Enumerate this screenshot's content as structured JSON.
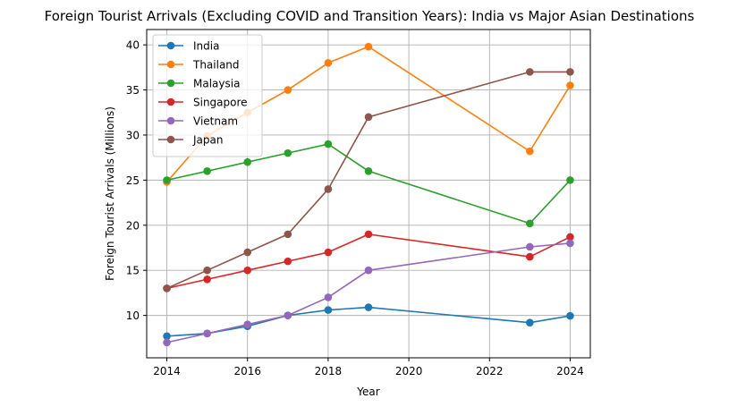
{
  "chart_data": {
    "type": "line",
    "title": "Foreign Tourist Arrivals (Excluding COVID and Transition Years): India vs Major Asian Destinations",
    "xlabel": "Year",
    "ylabel": "Foreign Tourist Arrivals (Millions)",
    "xlim": [
      2013.5,
      2024.5
    ],
    "ylim": [
      5.3,
      41.7
    ],
    "xticks": [
      2014,
      2016,
      2018,
      2020,
      2022,
      2024
    ],
    "yticks": [
      10,
      15,
      20,
      25,
      30,
      35,
      40
    ],
    "grid": true,
    "legend_position": "upper-left",
    "x": [
      2014,
      2015,
      2016,
      2017,
      2018,
      2019,
      2023,
      2024
    ],
    "series": [
      {
        "name": "India",
        "color": "#1f77b4",
        "values": [
          7.7,
          8.0,
          8.8,
          10.0,
          10.6,
          10.9,
          9.2,
          9.95
        ]
      },
      {
        "name": "Thailand",
        "color": "#ff7f0e",
        "values": [
          24.8,
          29.9,
          32.5,
          35.0,
          38.0,
          39.8,
          28.2,
          35.5
        ]
      },
      {
        "name": "Malaysia",
        "color": "#2ca02c",
        "values": [
          25.0,
          26.0,
          27.0,
          28.0,
          29.0,
          26.0,
          20.2,
          25.0
        ]
      },
      {
        "name": "Singapore",
        "color": "#d62728",
        "values": [
          13.0,
          14.0,
          15.0,
          16.0,
          17.0,
          19.0,
          16.5,
          18.7
        ]
      },
      {
        "name": "Vietnam",
        "color": "#9467bd",
        "values": [
          7.0,
          8.0,
          9.0,
          10.0,
          12.0,
          15.0,
          17.6,
          18.0
        ]
      },
      {
        "name": "Japan",
        "color": "#8c564b",
        "values": [
          13.0,
          15.0,
          17.0,
          19.0,
          24.0,
          32.0,
          37.0,
          37.0
        ]
      }
    ]
  }
}
